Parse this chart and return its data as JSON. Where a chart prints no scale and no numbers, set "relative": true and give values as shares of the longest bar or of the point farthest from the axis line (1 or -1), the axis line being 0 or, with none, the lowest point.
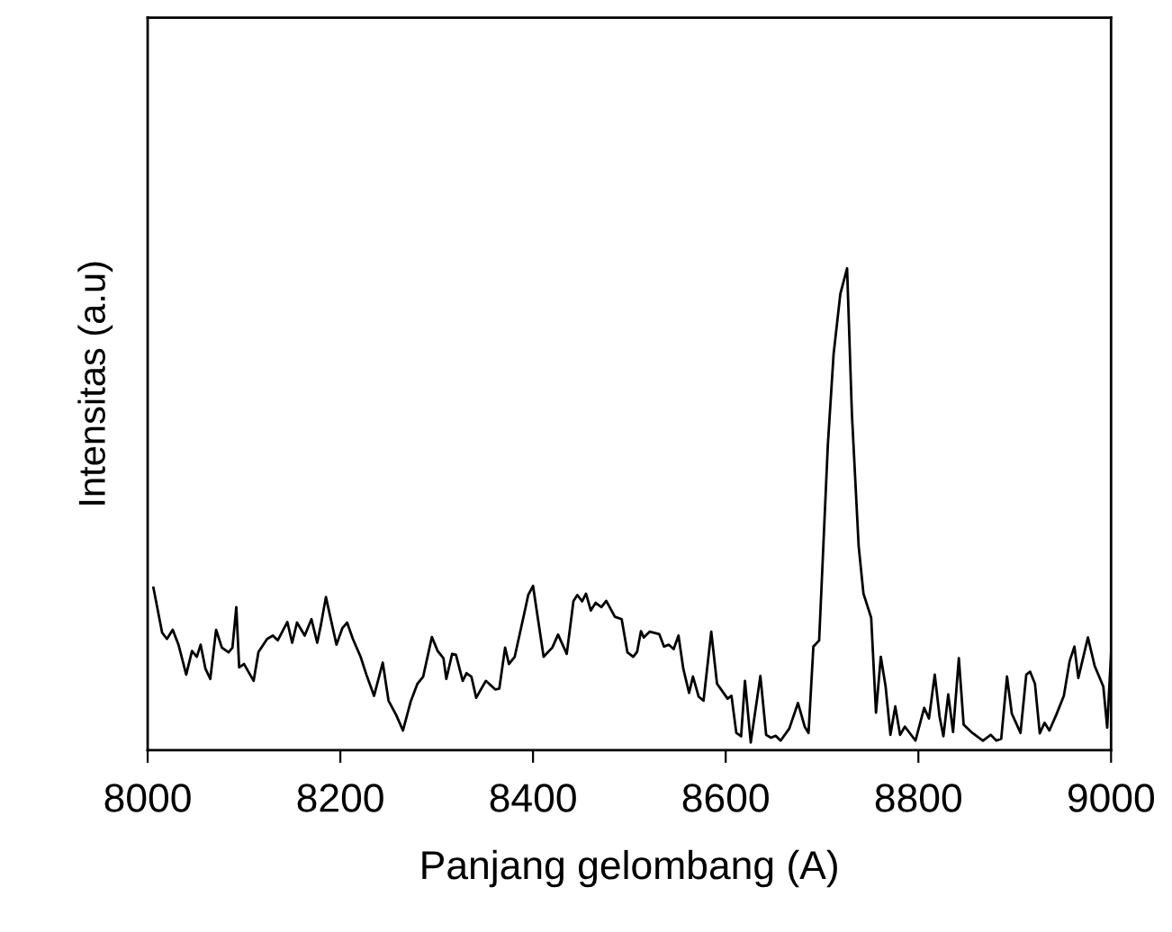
{
  "chart_data": {
    "type": "line",
    "xlabel": "Panjang gelombang (A)",
    "ylabel": "Intensitas (a.u)",
    "relative": true,
    "color": "#000000",
    "line_style": "solid",
    "marker": "none",
    "grid": false,
    "legend": false,
    "xlim": [
      8000,
      9000
    ],
    "xticks": [
      8000,
      8200,
      8400,
      8600,
      8800,
      9000
    ],
    "x": [
      8006,
      8015,
      8020,
      8026,
      8032,
      8040,
      8046,
      8051,
      8055,
      8060,
      8065,
      8071,
      8077,
      8084,
      8088,
      8092,
      8095,
      8100,
      8110,
      8115,
      8124,
      8130,
      8135,
      8145,
      8150,
      8155,
      8163,
      8170,
      8176,
      8180,
      8185,
      8196,
      8202,
      8207,
      8213,
      8221,
      8227,
      8235,
      8244,
      8250,
      8258,
      8265,
      8273,
      8280,
      8286,
      8295,
      8301,
      8307,
      8310,
      8316,
      8320,
      8327,
      8331,
      8336,
      8341,
      8351,
      8361,
      8365,
      8371,
      8375,
      8381,
      8392,
      8395,
      8400,
      8411,
      8420,
      8426,
      8435,
      8442,
      8446,
      8451,
      8455,
      8460,
      8465,
      8471,
      8476,
      8485,
      8492,
      8498,
      8504,
      8508,
      8512,
      8515,
      8521,
      8531,
      8536,
      8541,
      8546,
      8551,
      8556,
      8562,
      8566,
      8572,
      8577,
      8585,
      8591,
      8602,
      8606,
      8611,
      8616,
      8620,
      8626,
      8636,
      8642,
      8647,
      8652,
      8657,
      8666,
      8675,
      8682,
      8686,
      8691,
      8697,
      8706,
      8712,
      8719,
      8726,
      8731,
      8738,
      8743,
      8751,
      8756,
      8761,
      8766,
      8771,
      8776,
      8781,
      8786,
      8797,
      8806,
      8811,
      8817,
      8822,
      8826,
      8831,
      8836,
      8842,
      8847,
      8856,
      8867,
      8875,
      8881,
      8886,
      8892,
      8897,
      8906,
      8912,
      8916,
      8921,
      8926,
      8931,
      8936,
      8943,
      8951,
      8957,
      8962,
      8966,
      8976,
      8983,
      8992,
      8996,
      9000
    ],
    "values": [
      0.337,
      0.244,
      0.231,
      0.25,
      0.219,
      0.157,
      0.206,
      0.194,
      0.219,
      0.169,
      0.148,
      0.25,
      0.213,
      0.203,
      0.213,
      0.297,
      0.172,
      0.179,
      0.144,
      0.204,
      0.231,
      0.238,
      0.228,
      0.266,
      0.223,
      0.265,
      0.238,
      0.272,
      0.223,
      0.262,
      0.318,
      0.219,
      0.253,
      0.265,
      0.231,
      0.194,
      0.157,
      0.113,
      0.182,
      0.103,
      0.073,
      0.041,
      0.101,
      0.138,
      0.153,
      0.235,
      0.206,
      0.191,
      0.148,
      0.2,
      0.198,
      0.144,
      0.16,
      0.153,
      0.109,
      0.144,
      0.126,
      0.128,
      0.213,
      0.179,
      0.194,
      0.294,
      0.322,
      0.341,
      0.194,
      0.213,
      0.24,
      0.2,
      0.31,
      0.322,
      0.309,
      0.325,
      0.29,
      0.306,
      0.297,
      0.31,
      0.277,
      0.272,
      0.203,
      0.194,
      0.204,
      0.247,
      0.234,
      0.246,
      0.241,
      0.215,
      0.219,
      0.21,
      0.238,
      0.169,
      0.119,
      0.153,
      0.111,
      0.103,
      0.246,
      0.138,
      0.107,
      0.113,
      0.036,
      0.029,
      0.144,
      0.016,
      0.154,
      0.032,
      0.026,
      0.03,
      0.02,
      0.045,
      0.098,
      0.049,
      0.036,
      0.215,
      0.228,
      0.633,
      0.822,
      0.947,
      1.0,
      0.698,
      0.424,
      0.325,
      0.275,
      0.078,
      0.194,
      0.132,
      0.032,
      0.091,
      0.032,
      0.049,
      0.02,
      0.088,
      0.066,
      0.157,
      0.07,
      0.029,
      0.116,
      0.038,
      0.191,
      0.053,
      0.036,
      0.02,
      0.032,
      0.02,
      0.024,
      0.153,
      0.076,
      0.036,
      0.157,
      0.163,
      0.138,
      0.035,
      0.057,
      0.041,
      0.073,
      0.113,
      0.185,
      0.215,
      0.15,
      0.234,
      0.175,
      0.132,
      0.047,
      0.2
    ]
  }
}
